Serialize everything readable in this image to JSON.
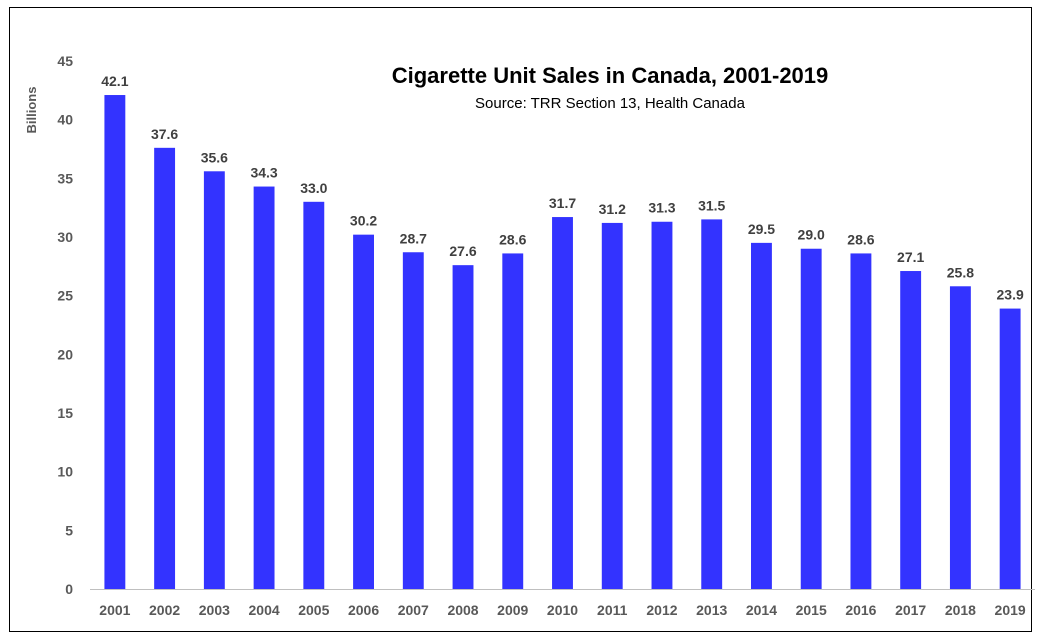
{
  "chart_data": {
    "type": "bar",
    "title": "Cigarette Unit Sales in Canada, 2001-2019",
    "subtitle": "Source: TRR Section 13, Health Canada",
    "xlabel": "",
    "ylabel": "Billions",
    "ylim": [
      0,
      45
    ],
    "yticks": [
      0,
      5,
      10,
      15,
      20,
      25,
      30,
      35,
      40,
      45
    ],
    "grid": false,
    "legend": "none",
    "bar_color": "#3333ff",
    "categories": [
      "2001",
      "2002",
      "2003",
      "2004",
      "2005",
      "2006",
      "2007",
      "2008",
      "2009",
      "2010",
      "2011",
      "2012",
      "2013",
      "2014",
      "2015",
      "2016",
      "2017",
      "2018",
      "2019"
    ],
    "values": [
      42.1,
      37.6,
      35.6,
      34.3,
      33.0,
      30.2,
      28.7,
      27.6,
      28.6,
      31.7,
      31.2,
      31.3,
      31.5,
      29.5,
      29.0,
      28.6,
      27.1,
      25.8,
      23.9
    ],
    "data_labels": [
      "42.1",
      "37.6",
      "35.6",
      "34.3",
      "33.0",
      "30.2",
      "28.7",
      "27.6",
      "28.6",
      "31.7",
      "31.2",
      "31.3",
      "31.5",
      "29.5",
      "29.0",
      "28.6",
      "27.1",
      "25.8",
      "23.9"
    ]
  }
}
